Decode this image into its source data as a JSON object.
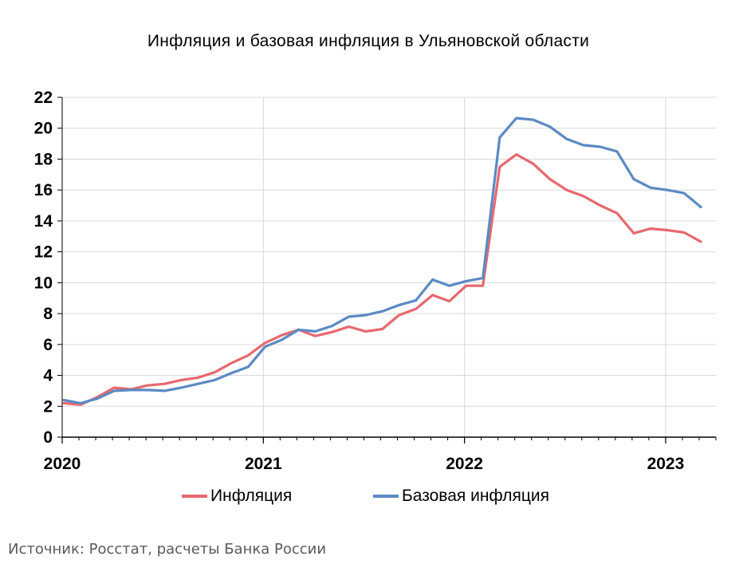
{
  "chart_data": {
    "type": "line",
    "title": "Инфляция и базовая инфляция в Ульяновской области",
    "xlabel": "",
    "ylabel": "",
    "ylim": [
      0,
      22
    ],
    "yticks": [
      "0",
      "2",
      "4",
      "6",
      "8",
      "10",
      "12",
      "14",
      "16",
      "18",
      "20",
      "22"
    ],
    "xticks": [
      "2020",
      "2021",
      "2022",
      "2023"
    ],
    "x": [
      "2020-01",
      "2020-02",
      "2020-03",
      "2020-04",
      "2020-05",
      "2020-06",
      "2020-07",
      "2020-08",
      "2020-09",
      "2020-10",
      "2020-11",
      "2020-12",
      "2021-01",
      "2021-02",
      "2021-03",
      "2021-04",
      "2021-05",
      "2021-06",
      "2021-07",
      "2021-08",
      "2021-09",
      "2021-10",
      "2021-11",
      "2021-12",
      "2022-01",
      "2022-02",
      "2022-03",
      "2022-04",
      "2022-05",
      "2022-06",
      "2022-07",
      "2022-08",
      "2022-09",
      "2022-10",
      "2022-11",
      "2022-12",
      "2023-01",
      "2023-02",
      "2023-03"
    ],
    "grid": true,
    "legend_position": "bottom",
    "series": [
      {
        "name": "Инфляция",
        "color": "#E8686E",
        "values": [
          2.2,
          2.1,
          2.6,
          3.2,
          3.1,
          3.35,
          3.45,
          3.7,
          3.85,
          4.2,
          4.8,
          5.3,
          6.1,
          6.6,
          6.95,
          6.55,
          6.8,
          7.15,
          6.85,
          7.0,
          7.9,
          8.3,
          9.2,
          8.8,
          9.8,
          9.8,
          17.5,
          18.3,
          17.7,
          16.7,
          16.0,
          15.6,
          15.0,
          14.5,
          13.2,
          13.5,
          13.4,
          13.25,
          12.65
        ]
      },
      {
        "name": "Базовая инфляция",
        "color": "#5B8AC4",
        "values": [
          2.4,
          2.2,
          2.5,
          3.0,
          3.05,
          3.05,
          3.0,
          3.2,
          3.45,
          3.7,
          4.15,
          4.55,
          5.85,
          6.3,
          6.95,
          6.85,
          7.2,
          7.8,
          7.9,
          8.15,
          8.55,
          8.85,
          10.2,
          9.8,
          10.1,
          10.3,
          19.4,
          20.65,
          20.55,
          20.1,
          19.3,
          18.9,
          18.8,
          18.5,
          16.7,
          16.15,
          16.0,
          15.8,
          14.9
        ]
      }
    ]
  },
  "source": "Источник: Росстат, расчеты Банка России"
}
